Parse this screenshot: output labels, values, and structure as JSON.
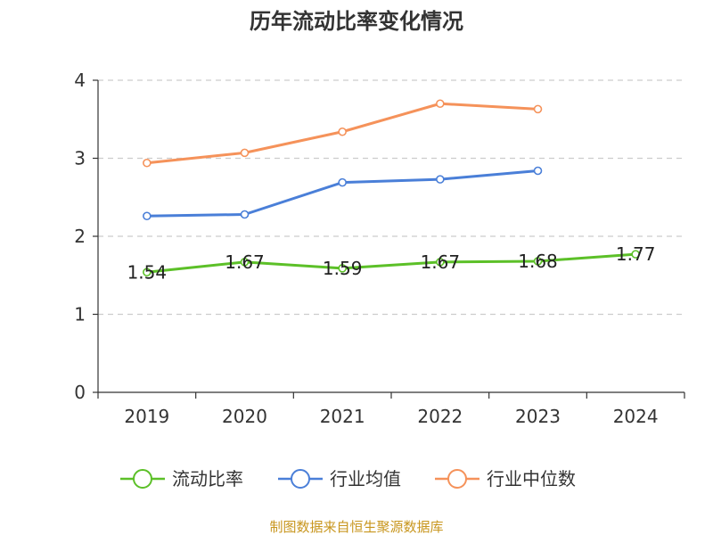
{
  "chart_data": {
    "type": "line",
    "title": "历年流动比率变化情况",
    "categories": [
      "2019",
      "2020",
      "2021",
      "2022",
      "2023",
      "2024"
    ],
    "ylim": [
      0,
      4
    ],
    "yticks": [
      0,
      1,
      2,
      3,
      4
    ],
    "grid": "horizontal dashed",
    "legend_position": "bottom",
    "series": [
      {
        "name": "流动比率",
        "color": "#5cc028",
        "values": [
          1.54,
          1.67,
          1.59,
          1.67,
          1.68,
          1.77
        ],
        "labels": [
          "1.54",
          "1.67",
          "1.59",
          "1.67",
          "1.68",
          "1.77"
        ]
      },
      {
        "name": "行业均值",
        "color": "#4a7fd8",
        "values": [
          2.26,
          2.28,
          2.69,
          2.73,
          2.84,
          null
        ]
      },
      {
        "name": "行业中位数",
        "color": "#f5925a",
        "values": [
          2.94,
          3.07,
          3.34,
          3.7,
          3.63,
          null
        ]
      }
    ],
    "source": "制图数据来自恒生聚源数据库"
  }
}
